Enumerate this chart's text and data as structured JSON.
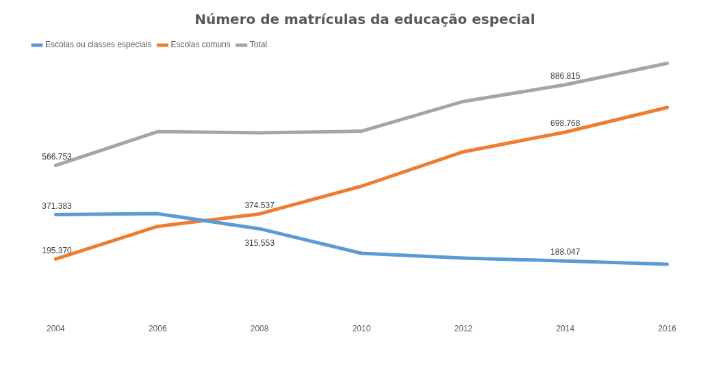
{
  "chart_data": {
    "type": "line",
    "title": "Número de matrículas da educação especial",
    "categories": [
      "2004",
      "2006",
      "2008",
      "2010",
      "2012",
      "2014",
      "2016"
    ],
    "tick_labels": "x",
    "grid": false,
    "legend": "top left",
    "marker": "none",
    "line_style": "solid",
    "series": [
      {
        "name": "Escolas ou classes especiais",
        "color": "#5b9bd5",
        "values": [
          371383,
          375488,
          315553,
          218271,
          199656,
          188047,
          174886
        ],
        "value_labels": [
          "371.383",
          null,
          "315.553",
          null,
          null,
          "188.047",
          null
        ]
      },
      {
        "name": "Escolas comuns",
        "color": "#ed7d31",
        "values": [
          195370,
          325136,
          374537,
          484332,
          620777,
          698768,
          796486
        ],
        "value_labels": [
          "195.370",
          null,
          "374.537",
          null,
          null,
          "698.768",
          null
        ]
      },
      {
        "name": "Total",
        "color": "#a5a5a5",
        "values": [
          566753,
          700624,
          695699,
          702603,
          820433,
          886815,
          971372
        ],
        "value_labels": [
          "566.753",
          null,
          null,
          null,
          null,
          "886.815",
          null
        ]
      }
    ]
  }
}
